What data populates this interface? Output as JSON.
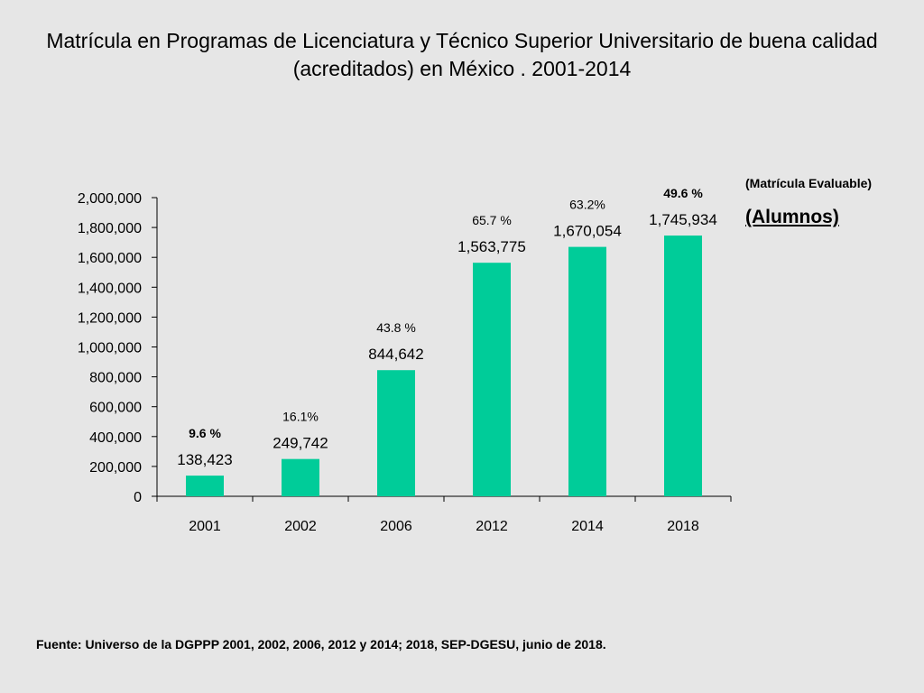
{
  "header": {
    "title_line1": "Matrícula en Programas de Licenciatura y Técnico Superior Universitario de buena calidad",
    "title_line2": "(acreditados) en México . 2001-2014"
  },
  "notes": {
    "side_note": "(Matrícula Evaluable)",
    "unit_label": "(Alumnos)",
    "source": "Fuente: Universo de la DGPPP 2001, 2002, 2006, 2012 y 2014; 2018, SEP-DGESU, junio de 2018."
  },
  "chart_data": {
    "type": "bar",
    "title": "Matrícula en Programas de Licenciatura y Técnico Superior Universitario de buena calidad (acreditados) en México . 2001-2014",
    "xlabel": "",
    "ylabel": "",
    "categories": [
      "2001",
      "2002",
      "2006",
      "2012",
      "2014",
      "2018"
    ],
    "values": [
      138423,
      249742,
      844642,
      1563775,
      1670054,
      1745934
    ],
    "value_labels": [
      "138,423",
      "249,742",
      "844,642",
      "1,563,775",
      "1,670,054",
      "1,745,934"
    ],
    "percent_labels": [
      "9.6 %",
      "16.1%",
      "43.8 %",
      "65.7 %",
      "63.2%",
      "49.6 %"
    ],
    "percent_bold": [
      true,
      false,
      false,
      false,
      false,
      true
    ],
    "ylim": [
      0,
      2000000
    ],
    "yticks": [
      0,
      200000,
      400000,
      600000,
      800000,
      1000000,
      1200000,
      1400000,
      1600000,
      1800000,
      2000000
    ],
    "ytick_labels": [
      "0",
      "200,000",
      "400,000",
      "600,000",
      "800,000",
      "1,000,000",
      "1,200,000",
      "1,400,000",
      "1,600,000",
      "1,800,000",
      "2,000,000"
    ],
    "bar_color": "#00cc99",
    "grid": false,
    "legend": "none"
  }
}
